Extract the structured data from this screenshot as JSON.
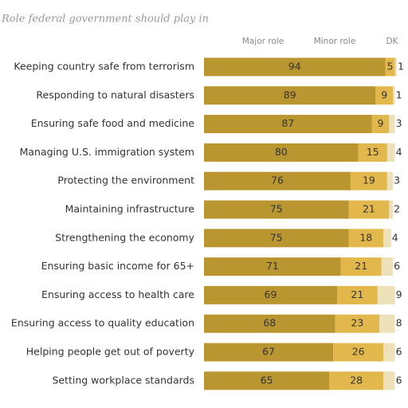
{
  "chart_data": {
    "type": "stacked-bar-horizontal",
    "title": "Role federal government should play in",
    "categories": [
      "Keeping country safe from terrorism",
      "Responding to natural disasters",
      "Ensuring safe food and medicine",
      "Managing U.S. immigration system",
      "Protecting the environment",
      "Maintaining infrastructure",
      "Strengthening the economy",
      "Ensuring basic income for 65+",
      "Ensuring access to health care",
      "Ensuring access to quality education",
      "Helping people get out of poverty",
      "Setting workplace standards"
    ],
    "series": [
      {
        "name": "Major role",
        "color": "#b9962f",
        "values": [
          94,
          89,
          87,
          80,
          76,
          75,
          75,
          71,
          69,
          68,
          67,
          65
        ]
      },
      {
        "name": "Minor role",
        "color": "#e2b84c",
        "values": [
          5,
          9,
          9,
          15,
          19,
          21,
          18,
          21,
          21,
          23,
          26,
          28
        ]
      },
      {
        "name": "DK",
        "color": "#ece1b8",
        "values": [
          1,
          1,
          3,
          4,
          3,
          2,
          4,
          6,
          9,
          8,
          6,
          6
        ]
      }
    ],
    "xlim": [
      0,
      100
    ]
  }
}
